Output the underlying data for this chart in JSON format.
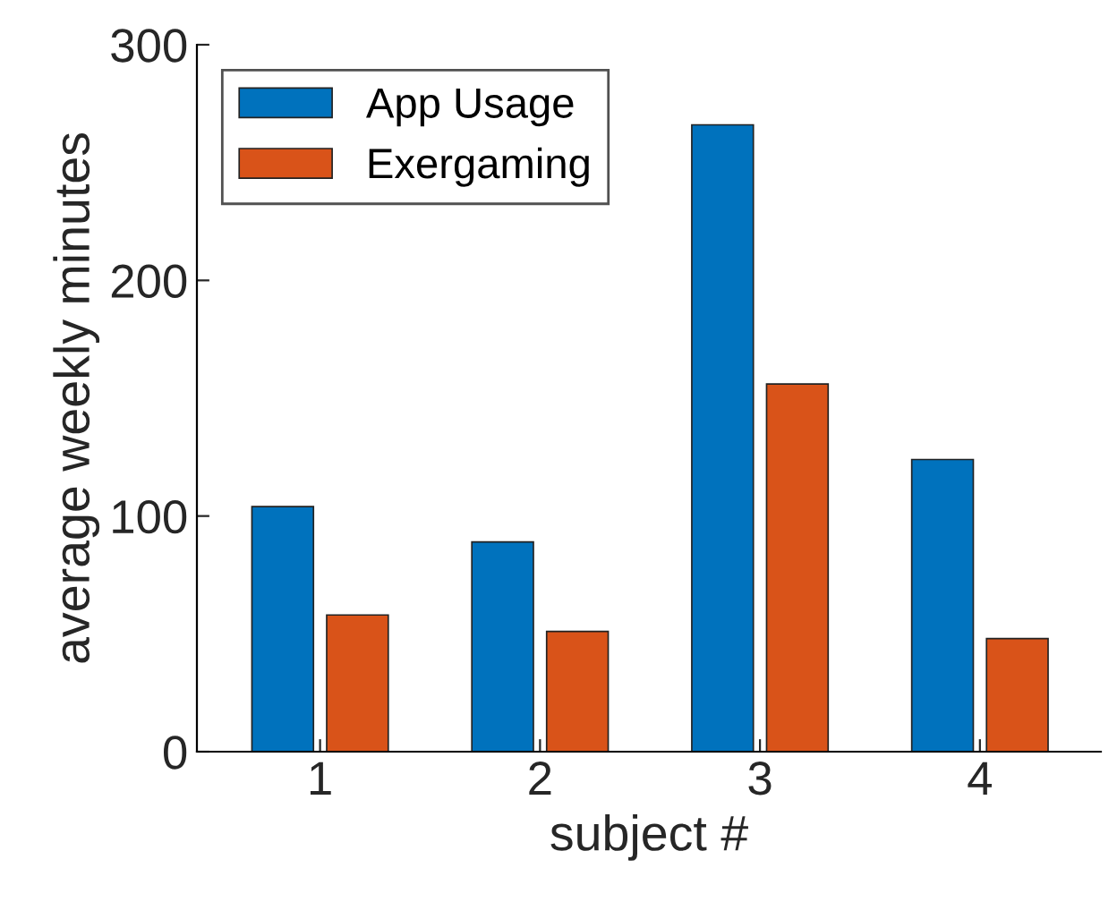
{
  "chart_data": {
    "type": "bar",
    "xlabel": "subject #",
    "ylabel": "average weekly minutes",
    "categories": [
      "1",
      "2",
      "3",
      "4"
    ],
    "series": [
      {
        "name": "App Usage",
        "color": "#0072bd",
        "values": [
          104,
          89,
          266,
          124
        ]
      },
      {
        "name": "Exergaming",
        "color": "#d95319",
        "values": [
          58,
          51,
          156,
          48
        ]
      }
    ],
    "ylim": [
      0,
      300
    ],
    "yticks": [
      0,
      100,
      200,
      300
    ],
    "grid": false,
    "legend": "top left"
  }
}
